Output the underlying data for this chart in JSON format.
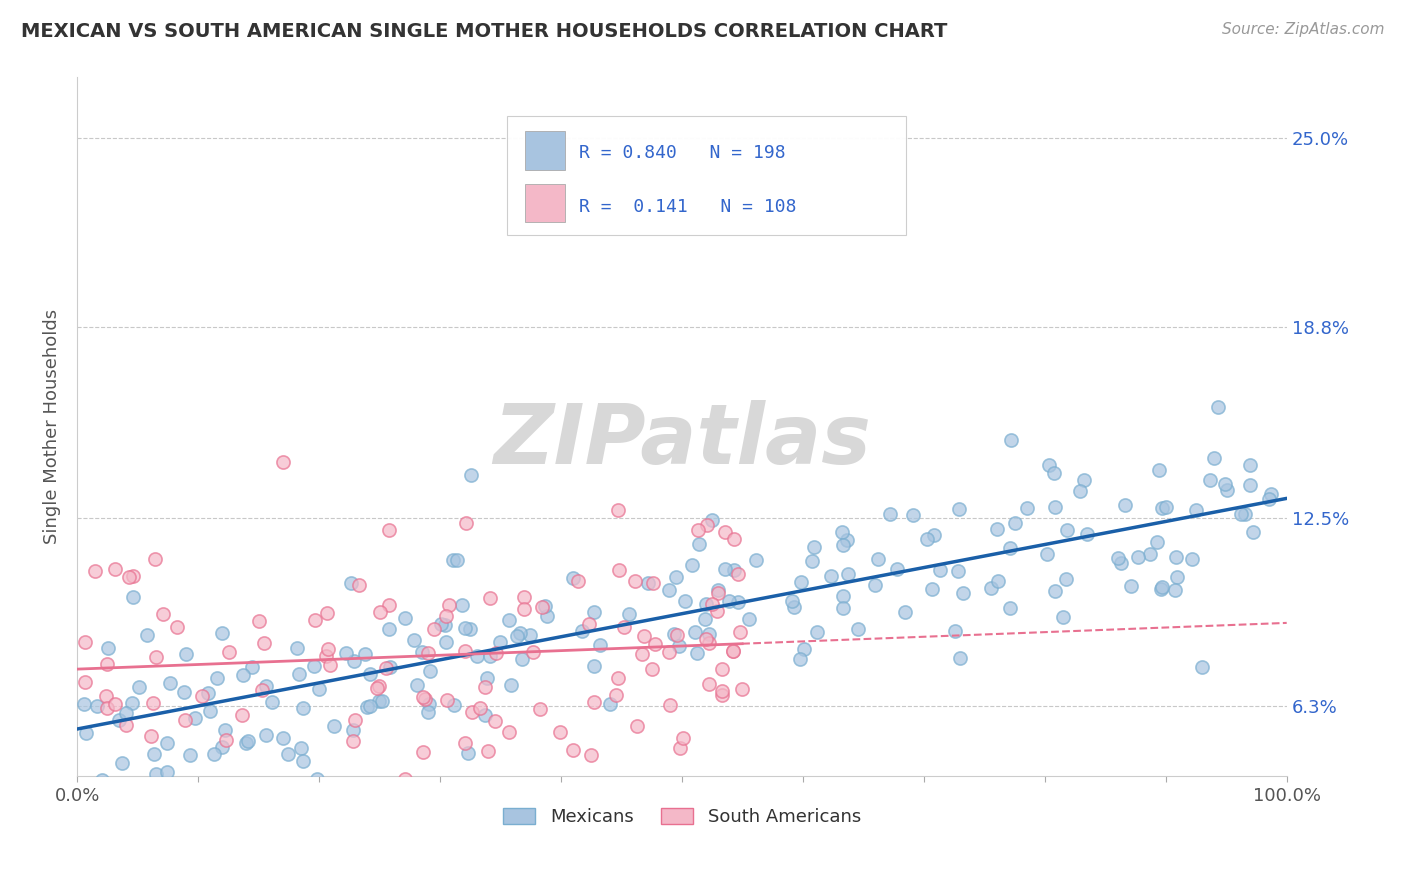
{
  "title": "MEXICAN VS SOUTH AMERICAN SINGLE MOTHER HOUSEHOLDS CORRELATION CHART",
  "source": "Source: ZipAtlas.com",
  "ylabel": "Single Mother Households",
  "xlim": [
    0.0,
    1.0
  ],
  "ylim": [
    0.04,
    0.27
  ],
  "yticks": [
    0.063,
    0.125,
    0.188,
    0.25
  ],
  "ytick_labels": [
    "6.3%",
    "12.5%",
    "18.8%",
    "25.0%"
  ],
  "xticks": [
    0.0,
    0.1,
    0.2,
    0.3,
    0.4,
    0.5,
    0.6,
    0.7,
    0.8,
    0.9,
    1.0
  ],
  "mexican_R": 0.84,
  "mexican_N": 198,
  "southam_R": 0.141,
  "southam_N": 108,
  "mexican_color": "#a8c4e0",
  "mexican_edge_color": "#7aaed0",
  "southam_color": "#f4b8c8",
  "southam_edge_color": "#e87090",
  "mexican_line_color": "#1a5fa8",
  "southam_line_color": "#e87090",
  "background_color": "#ffffff",
  "grid_color": "#c8c8c8",
  "title_color": "#333333",
  "legend_text_color": "#3366cc",
  "axis_label_color": "#555555",
  "watermark": "ZIPatlas",
  "watermark_color": "#d8d8d8",
  "seed": 42
}
